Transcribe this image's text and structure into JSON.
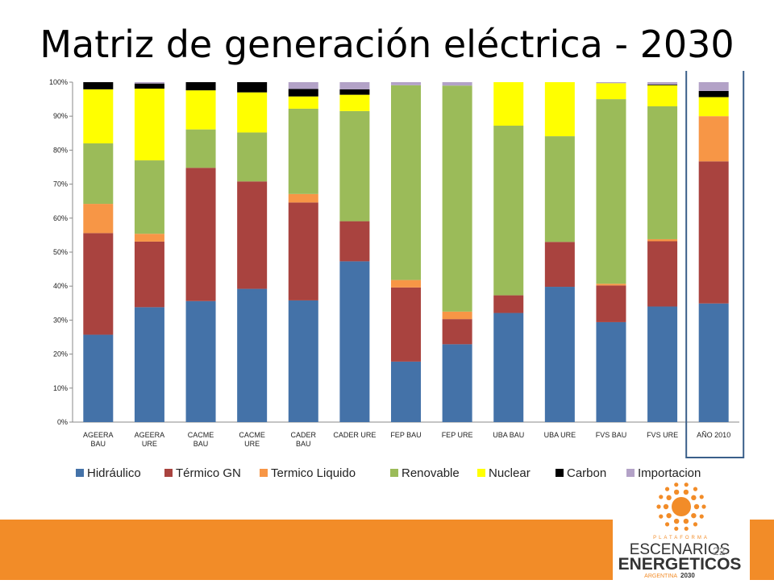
{
  "slide": {
    "title": "Matriz de generación eléctrica - 2030",
    "page_number": "22"
  },
  "logo": {
    "top_text": "PLATAFORMA",
    "line1": "ESCENARIOS",
    "line2": "ENERGETICOS",
    "line3_a": "ARGENTINA",
    "line3_b": "2030",
    "colors": {
      "orange": "#f28c28",
      "dark": "#333333"
    }
  },
  "chart_data": {
    "type": "bar",
    "stacked": "percent",
    "categories": [
      [
        "AGEERA",
        "BAU"
      ],
      [
        "AGEERA",
        "URE"
      ],
      [
        "CACME",
        "BAU"
      ],
      [
        "CACME",
        "URE"
      ],
      [
        "CADER",
        "BAU"
      ],
      [
        "CADER URE"
      ],
      [
        "FEP BAU"
      ],
      [
        "FEP URE"
      ],
      [
        "UBA BAU"
      ],
      [
        "UBA URE"
      ],
      [
        "FVS BAU"
      ],
      [
        "FVS URE"
      ],
      [
        "AÑO 2010"
      ]
    ],
    "ylim": [
      0,
      100
    ],
    "yticks": [
      "0%",
      "10%",
      "20%",
      "30%",
      "40%",
      "50%",
      "60%",
      "70%",
      "80%",
      "90%",
      "100%"
    ],
    "legend_position": "bottom",
    "highlight_category": "AÑO 2010",
    "highlight_color": "#3a5f8a",
    "series": [
      {
        "name": "Hidráulico",
        "color": "#4472a8",
        "values": [
          25.7,
          33.8,
          35.6,
          39.2,
          35.8,
          47.3,
          17.8,
          22.9,
          32.1,
          39.8,
          29.4,
          34.0,
          34.9
        ]
      },
      {
        "name": "Térmico GN",
        "color": "#a9433f",
        "values": [
          29.9,
          19.3,
          39.2,
          31.6,
          28.8,
          11.8,
          21.8,
          7.4,
          5.2,
          13.2,
          10.8,
          19.2,
          41.8
        ]
      },
      {
        "name": "Termico Liquido",
        "color": "#f79646",
        "values": [
          8.6,
          2.3,
          0.0,
          0.0,
          2.5,
          0.0,
          2.2,
          2.2,
          0.0,
          0.0,
          0.5,
          0.6,
          13.3
        ]
      },
      {
        "name": "Renovable",
        "color": "#9bbb59",
        "values": [
          17.8,
          21.6,
          11.3,
          14.4,
          25.1,
          32.4,
          57.3,
          66.5,
          49.9,
          31.1,
          54.3,
          39.1,
          0.0
        ]
      },
      {
        "name": "Nuclear",
        "color": "#ffff00",
        "values": [
          15.9,
          21.1,
          11.5,
          11.8,
          3.6,
          4.8,
          0.0,
          0.0,
          12.8,
          15.9,
          4.7,
          6.2,
          5.6
        ]
      },
      {
        "name": "Carbon",
        "color": "#000000",
        "values": [
          2.1,
          1.5,
          2.4,
          3.0,
          2.2,
          1.6,
          0.0,
          0.0,
          0.0,
          0.0,
          0.0,
          0.2,
          1.8
        ]
      },
      {
        "name": "Importacion",
        "color": "#b3a2c7",
        "values": [
          0.0,
          0.4,
          0.0,
          0.0,
          2.0,
          2.1,
          0.9,
          1.0,
          0.0,
          0.0,
          0.3,
          0.7,
          2.6
        ]
      }
    ]
  }
}
